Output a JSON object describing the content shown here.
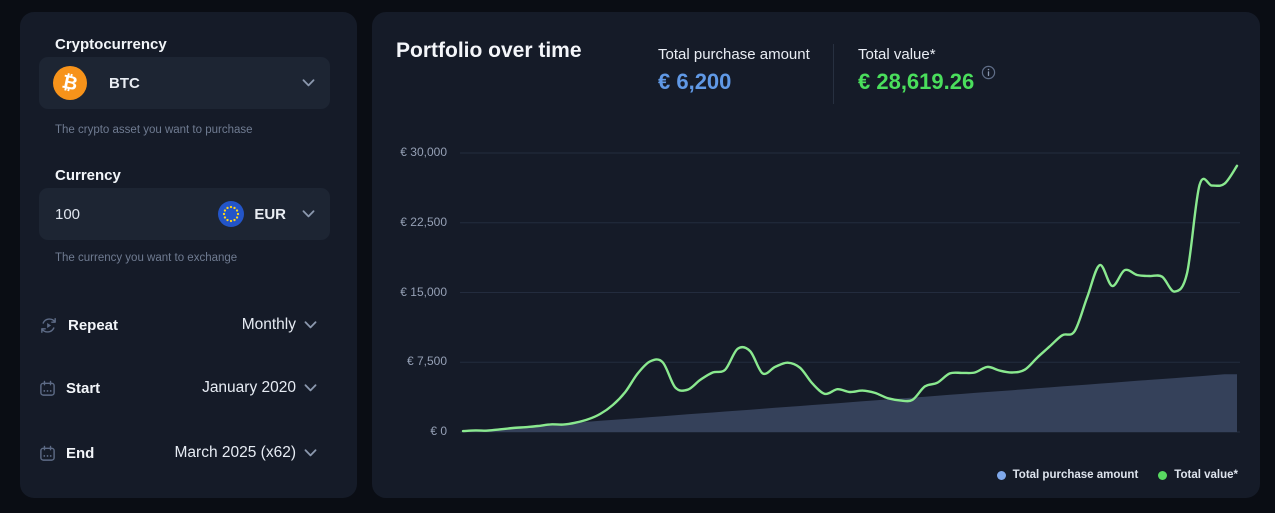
{
  "page": {
    "background": "#0a0d14",
    "card_background": "#151b28"
  },
  "sidebar": {
    "crypto": {
      "label": "Cryptocurrency",
      "value": "BTC",
      "symbol": "₿",
      "icon": "btc-icon",
      "icon_color": "#f7931a",
      "helper": "The crypto asset you want to purchase"
    },
    "currency": {
      "label": "Currency",
      "amount": "100",
      "code": "EUR",
      "icon": "eur-flag-icon",
      "flag_colors": {
        "circle": "#2355c8",
        "stars": "#ffd617"
      },
      "helper": "The currency you want to exchange"
    },
    "rows": [
      {
        "icon": "repeat-icon",
        "label": "Repeat",
        "value": "Monthly"
      },
      {
        "icon": "calendar-icon",
        "label": "Start",
        "value": "January 2020"
      },
      {
        "icon": "calendar-icon",
        "label": "End",
        "value": "March 2025 (x62)"
      }
    ]
  },
  "main": {
    "title": "Portfolio over time",
    "stats": [
      {
        "label": "Total purchase amount",
        "value": "€ 6,200",
        "color": "#6099e6"
      },
      {
        "label": "Total value*",
        "value": "€ 28,619.26",
        "color": "#4ade5c",
        "info_icon": "info-icon"
      }
    ]
  },
  "chart_data": {
    "type": "line",
    "title": "Portfolio over time",
    "x_start": "January 2020",
    "x_end": "March 2025",
    "x_interval": "monthly",
    "points": 63,
    "grid": "horizontal",
    "legend_position": "bottom-right",
    "ylim": [
      0,
      31200
    ],
    "y_ticks": [
      {
        "label": "€ 30,000",
        "value": 30000
      },
      {
        "label": "€ 22,500",
        "value": 22500
      },
      {
        "label": "€ 15,000",
        "value": 15000
      },
      {
        "label": "€ 7,500",
        "value": 7500
      },
      {
        "label": "€ 0",
        "value": 0
      }
    ],
    "series": [
      {
        "name": "Total purchase amount",
        "type": "area",
        "color": "#7fa8ea",
        "legend_color": "#7fa8ea",
        "fill": "#35415a",
        "values": [
          100,
          200,
          300,
          400,
          500,
          600,
          700,
          800,
          900,
          1000,
          1100,
          1200,
          1300,
          1400,
          1500,
          1600,
          1700,
          1800,
          1900,
          2000,
          2100,
          2200,
          2300,
          2400,
          2500,
          2600,
          2700,
          2800,
          2900,
          3000,
          3100,
          3200,
          3300,
          3400,
          3500,
          3600,
          3700,
          3800,
          3900,
          4000,
          4100,
          4200,
          4300,
          4400,
          4500,
          4600,
          4700,
          4800,
          4900,
          5000,
          5100,
          5200,
          5300,
          5400,
          5500,
          5600,
          5700,
          5800,
          5900,
          6000,
          6100,
          6200,
          6200
        ]
      },
      {
        "name": "Total value*",
        "type": "line",
        "color": "#8ae98f",
        "legend_color": "#58d961",
        "values": [
          100,
          170,
          150,
          290,
          430,
          520,
          640,
          820,
          800,
          1000,
          1350,
          1950,
          2900,
          4300,
          6300,
          7600,
          7500,
          4800,
          4550,
          5600,
          6400,
          6700,
          8950,
          8700,
          6300,
          7000,
          7450,
          6900,
          5200,
          4100,
          4600,
          4300,
          4450,
          4200,
          3650,
          3400,
          3450,
          4900,
          5300,
          6300,
          6350,
          6400,
          7000,
          6600,
          6400,
          6700,
          8000,
          9200,
          10400,
          10850,
          14500,
          17950,
          15700,
          17400,
          16880,
          16770,
          16700,
          15100,
          17100,
          26550,
          26500,
          26700,
          28619.26
        ]
      }
    ]
  }
}
